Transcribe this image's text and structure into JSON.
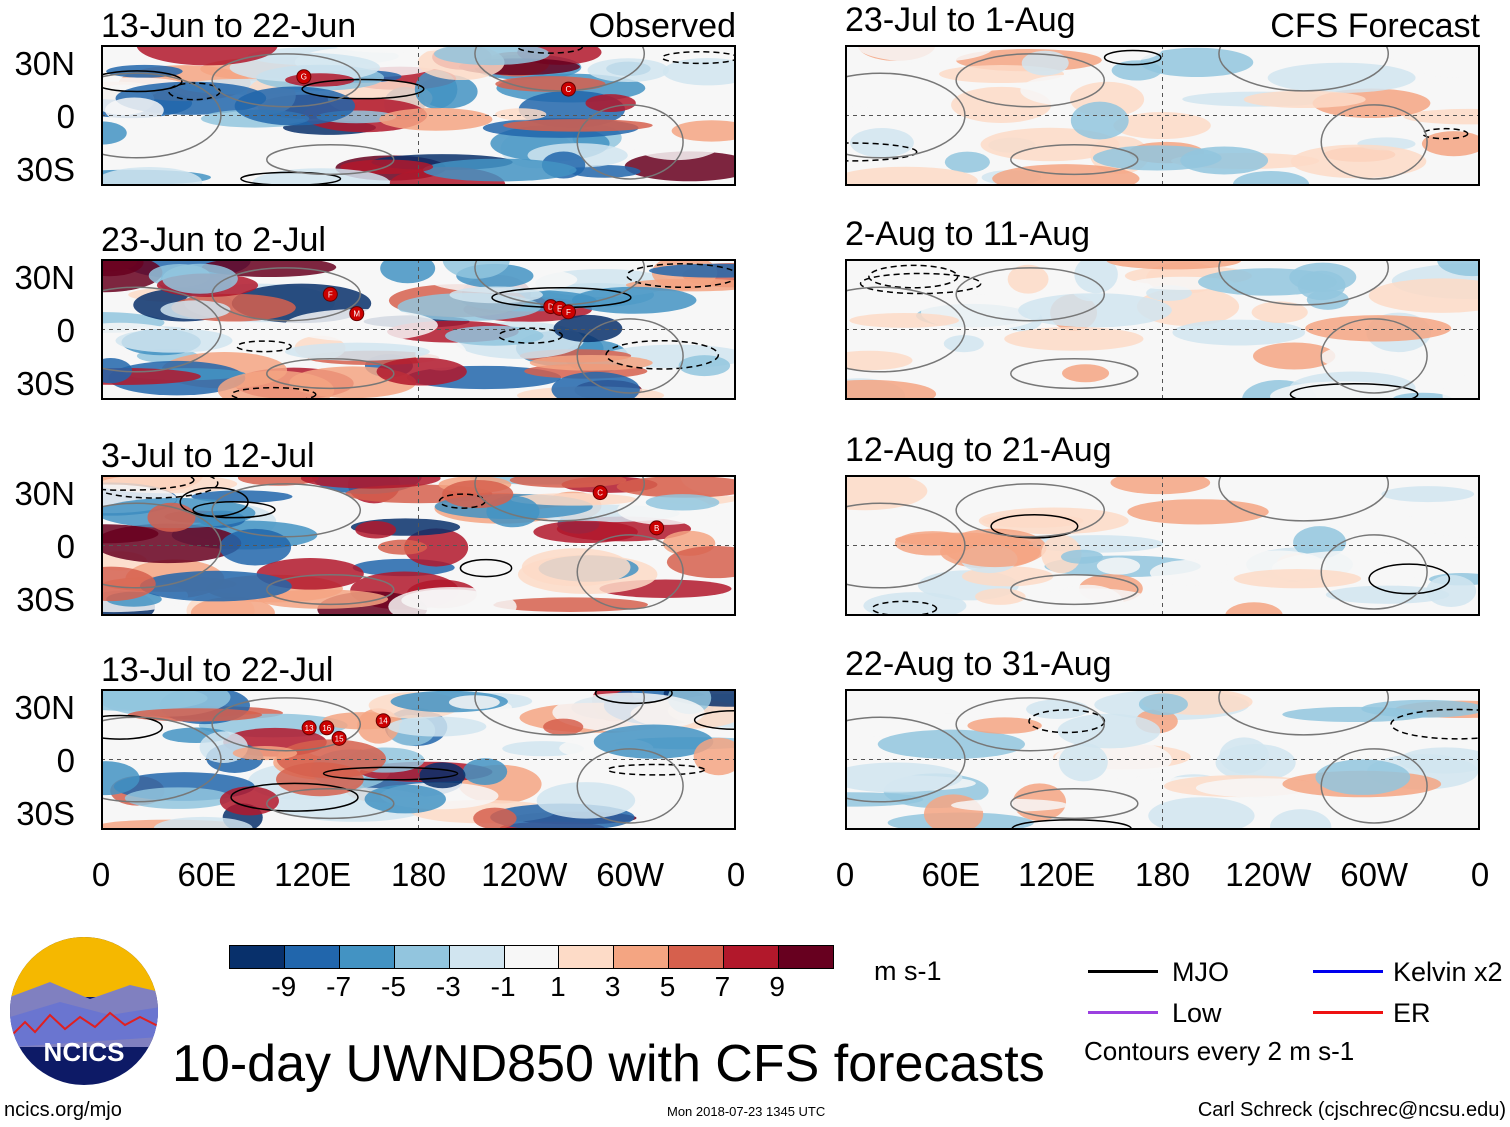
{
  "chart_data": {
    "type": "heatmap",
    "title": "10-day UWND850 with CFS forecasts",
    "column_labels": [
      "Observed",
      "CFS Forecast"
    ],
    "panels": [
      {
        "title": "13-Jun to 22-Jun",
        "column": "observed",
        "storms": [
          {
            "label": "G",
            "lon": 115,
            "lat": 22
          },
          {
            "label": "C",
            "lon": -95,
            "lat": 15
          }
        ]
      },
      {
        "title": "23-Jun to 2-Jul",
        "column": "observed",
        "storms": [
          {
            "label": "F",
            "lon": 130,
            "lat": 20
          },
          {
            "label": "M",
            "lon": 145,
            "lat": 9
          },
          {
            "label": "D",
            "lon": -105,
            "lat": 13
          },
          {
            "label": "E",
            "lon": -100,
            "lat": 12
          },
          {
            "label": "F",
            "lon": -95,
            "lat": 10
          }
        ]
      },
      {
        "title": "3-Jul to 12-Jul",
        "column": "observed",
        "storms": [
          {
            "label": "C",
            "lon": -77,
            "lat": 30
          },
          {
            "label": "B",
            "lon": -45,
            "lat": 10
          }
        ]
      },
      {
        "title": "13-Jul to 22-Jul",
        "column": "observed",
        "storms": [
          {
            "label": "13",
            "lon": 118,
            "lat": 18
          },
          {
            "label": "16",
            "lon": 128,
            "lat": 18
          },
          {
            "label": "15",
            "lon": 135,
            "lat": 12
          },
          {
            "label": "14",
            "lon": 160,
            "lat": 22
          }
        ]
      },
      {
        "title": "23-Jul to 1-Aug",
        "column": "forecast",
        "storms": []
      },
      {
        "title": "2-Aug to 11-Aug",
        "column": "forecast",
        "storms": []
      },
      {
        "title": "12-Aug to 21-Aug",
        "column": "forecast",
        "storms": []
      },
      {
        "title": "22-Aug to 31-Aug",
        "column": "forecast",
        "storms": []
      }
    ],
    "y_tick_labels": [
      "30N",
      "0",
      "30S"
    ],
    "x_tick_labels": [
      "0",
      "60E",
      "120E",
      "180",
      "120W",
      "60W",
      "0"
    ],
    "colorbar": {
      "ticks": [
        "-9",
        "-7",
        "-5",
        "-3",
        "-1",
        "1",
        "3",
        "5",
        "7",
        "9"
      ],
      "colors": [
        "#08306b",
        "#2166ac",
        "#4393c3",
        "#92c5de",
        "#d1e5f0",
        "#f7f7f7",
        "#fddbc7",
        "#f4a582",
        "#d6604d",
        "#b2182b",
        "#67001f"
      ],
      "units": "m s-1"
    },
    "legend": [
      {
        "label": "MJO",
        "color": "#000000"
      },
      {
        "label": "Kelvin x2",
        "color": "#0000ee"
      },
      {
        "label": "Low",
        "color": "#9b40e0"
      },
      {
        "label": "ER",
        "color": "#ee1111"
      }
    ],
    "contour_note": "Contours every 2 m s-1"
  },
  "footer": {
    "left": "ncics.org/mjo",
    "center": "Mon 2018-07-23 1345 UTC",
    "right": "Carl Schreck (cjschrec@ncsu.edu)",
    "logo_text": "NCICS"
  }
}
